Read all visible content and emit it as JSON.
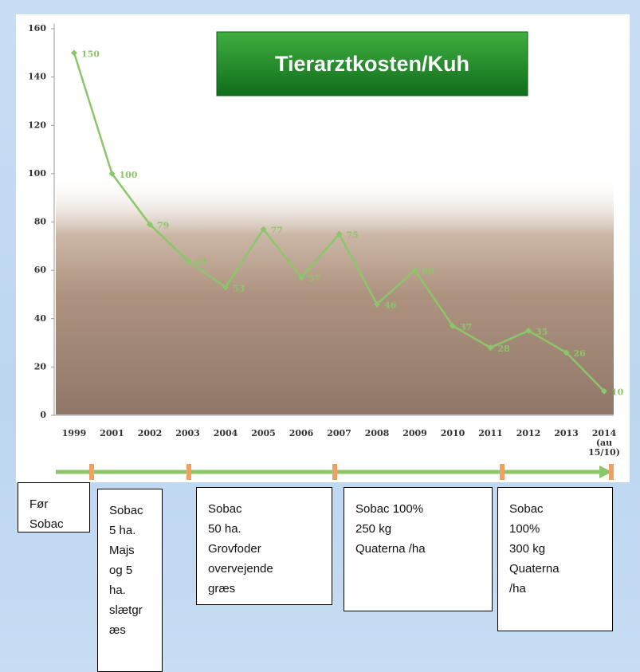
{
  "chart_data": {
    "type": "line",
    "title": "Tierarztkosten/Kuh",
    "categories": [
      "1999",
      "2001",
      "2002",
      "2003",
      "2004",
      "2005",
      "2006",
      "2007",
      "2008",
      "2009",
      "2010",
      "2011",
      "2012",
      "2013",
      "2014 (au 15/10)"
    ],
    "values": [
      150,
      100,
      79,
      64,
      53,
      77,
      57,
      75,
      46,
      60,
      37,
      28,
      35,
      26,
      10
    ],
    "color": "#8cc66a",
    "ylim": [
      0,
      160
    ],
    "yticks": [
      0,
      20,
      40,
      60,
      80,
      100,
      120,
      140,
      160
    ],
    "grid": false
  },
  "boxes": [
    {
      "lines": [
        "Før",
        "Sobac"
      ]
    },
    {
      "lines": [
        "Sobac",
        "5 ha.",
        "Majs",
        "og 5",
        "ha.",
        "slætgr",
        "æs"
      ]
    },
    {
      "lines": [
        "Sobac",
        "50 ha.",
        "Grovfoder",
        "overvejende",
        "græs"
      ]
    },
    {
      "lines": [
        "Sobac 100%",
        "250 kg",
        "Quaterna /ha"
      ]
    },
    {
      "lines": [
        "Sobac",
        "100%",
        "300 kg",
        "Quaterna",
        "/ha"
      ]
    }
  ]
}
